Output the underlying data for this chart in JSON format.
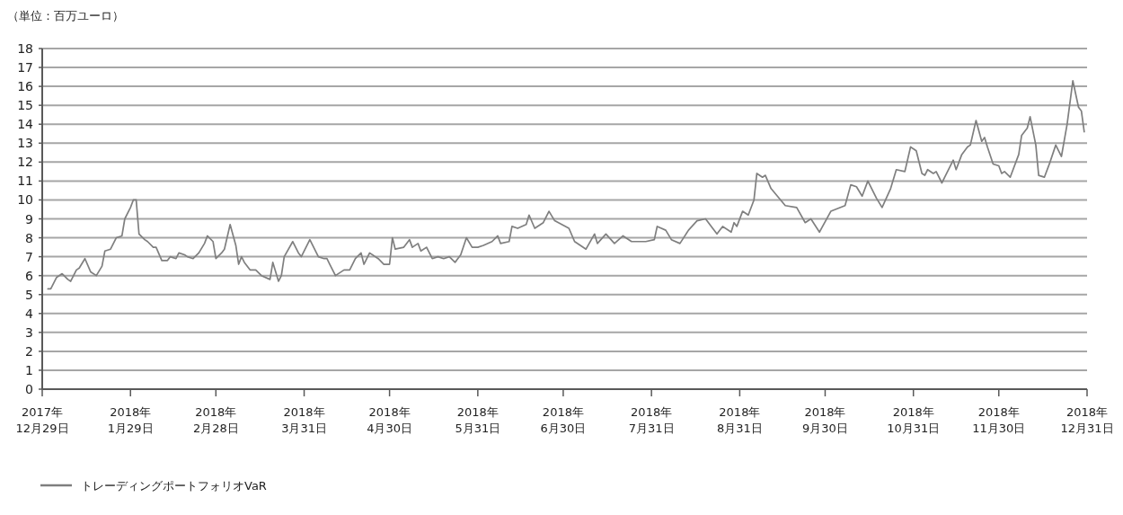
{
  "chart_data": {
    "type": "line",
    "ylabel": "（単位：百万ユーロ）",
    "ylim": [
      0,
      18
    ],
    "yticks": [
      0,
      1,
      2,
      3,
      4,
      5,
      6,
      7,
      8,
      9,
      10,
      11,
      12,
      13,
      14,
      15,
      16,
      17,
      18
    ],
    "xlim": [
      "2017-12-29",
      "2018-12-31"
    ],
    "xticks": [
      {
        "value": "2017-12-29",
        "label": "2017年\n12月29日"
      },
      {
        "value": "2018-01-29",
        "label": "2018年\n1月29日"
      },
      {
        "value": "2018-02-28",
        "label": "2018年\n2月28日"
      },
      {
        "value": "2018-03-31",
        "label": "2018年\n3月31日"
      },
      {
        "value": "2018-04-30",
        "label": "2018年\n4月30日"
      },
      {
        "value": "2018-05-31",
        "label": "2018年\n5月31日"
      },
      {
        "value": "2018-06-30",
        "label": "2018年\n6月30日"
      },
      {
        "value": "2018-07-31",
        "label": "2018年\n7月31日"
      },
      {
        "value": "2018-08-31",
        "label": "2018年\n8月31日"
      },
      {
        "value": "2018-09-30",
        "label": "2018年\n9月30日"
      },
      {
        "value": "2018-10-31",
        "label": "2018年\n10月31日"
      },
      {
        "value": "2018-11-30",
        "label": "2018年\n11月30日"
      },
      {
        "value": "2018-12-31",
        "label": "2018年\n12月31日"
      }
    ],
    "grid": "y",
    "legend": "bottom left",
    "series": [
      {
        "name": "トレーディングポートフォリオVaR",
        "color": "#7f7f7f",
        "x": [
          "2017-12-31",
          "2018-01-01",
          "2018-01-03",
          "2018-01-05",
          "2018-01-07",
          "2018-01-08",
          "2018-01-10",
          "2018-01-11",
          "2018-01-13",
          "2018-01-15",
          "2018-01-17",
          "2018-01-19",
          "2018-01-20",
          "2018-01-22",
          "2018-01-24",
          "2018-01-26",
          "2018-01-27",
          "2018-01-29",
          "2018-01-30",
          "2018-01-31",
          "2018-02-01",
          "2018-02-03",
          "2018-02-04",
          "2018-02-06",
          "2018-02-07",
          "2018-02-09",
          "2018-02-11",
          "2018-02-12",
          "2018-02-14",
          "2018-02-15",
          "2018-02-17",
          "2018-02-18",
          "2018-02-20",
          "2018-02-22",
          "2018-02-24",
          "2018-02-25",
          "2018-02-27",
          "2018-02-28",
          "2018-03-02",
          "2018-03-03",
          "2018-03-05",
          "2018-03-07",
          "2018-03-08",
          "2018-03-09",
          "2018-03-10",
          "2018-03-12",
          "2018-03-14",
          "2018-03-16",
          "2018-03-19",
          "2018-03-20",
          "2018-03-22",
          "2018-03-23",
          "2018-03-24",
          "2018-03-27",
          "2018-03-29",
          "2018-03-30",
          "2018-04-02",
          "2018-04-05",
          "2018-04-07",
          "2018-04-08",
          "2018-04-09",
          "2018-04-11",
          "2018-04-14",
          "2018-04-16",
          "2018-04-18",
          "2018-04-20",
          "2018-04-21",
          "2018-04-23",
          "2018-04-26",
          "2018-04-28",
          "2018-04-30",
          "2018-05-01",
          "2018-05-02",
          "2018-05-05",
          "2018-05-07",
          "2018-05-08",
          "2018-05-10",
          "2018-05-11",
          "2018-05-13",
          "2018-05-15",
          "2018-05-17",
          "2018-05-19",
          "2018-05-21",
          "2018-05-23",
          "2018-05-25",
          "2018-05-27",
          "2018-05-29",
          "2018-05-31",
          "2018-06-02",
          "2018-06-05",
          "2018-06-07",
          "2018-06-08",
          "2018-06-11",
          "2018-06-12",
          "2018-06-14",
          "2018-06-17",
          "2018-06-18",
          "2018-06-20",
          "2018-06-23",
          "2018-06-25",
          "2018-06-27",
          "2018-07-02",
          "2018-07-04",
          "2018-07-08",
          "2018-07-11",
          "2018-07-12",
          "2018-07-15",
          "2018-07-18",
          "2018-07-21",
          "2018-07-24",
          "2018-07-29",
          "2018-08-01",
          "2018-08-02",
          "2018-08-05",
          "2018-08-07",
          "2018-08-10",
          "2018-08-13",
          "2018-08-16",
          "2018-08-19",
          "2018-08-23",
          "2018-08-25",
          "2018-08-28",
          "2018-08-29",
          "2018-08-30",
          "2018-09-01",
          "2018-09-03",
          "2018-09-05",
          "2018-09-06",
          "2018-09-08",
          "2018-09-09",
          "2018-09-11",
          "2018-09-16",
          "2018-09-20",
          "2018-09-23",
          "2018-09-25",
          "2018-09-28",
          "2018-10-02",
          "2018-10-07",
          "2018-10-09",
          "2018-10-11",
          "2018-10-13",
          "2018-10-15",
          "2018-10-18",
          "2018-10-20",
          "2018-10-23",
          "2018-10-25",
          "2018-10-28",
          "2018-10-30",
          "2018-11-01",
          "2018-11-03",
          "2018-11-04",
          "2018-11-05",
          "2018-11-07",
          "2018-11-08",
          "2018-11-10",
          "2018-11-11",
          "2018-11-14",
          "2018-11-15",
          "2018-11-17",
          "2018-11-19",
          "2018-11-20",
          "2018-11-22",
          "2018-11-24",
          "2018-11-25",
          "2018-11-26",
          "2018-11-28",
          "2018-11-30",
          "2018-12-01",
          "2018-12-02",
          "2018-12-04",
          "2018-12-07",
          "2018-12-08",
          "2018-12-10",
          "2018-12-11",
          "2018-12-13",
          "2018-12-14",
          "2018-12-16",
          "2018-12-18",
          "2018-12-20",
          "2018-12-22",
          "2018-12-24",
          "2018-12-26",
          "2018-12-28",
          "2018-12-29",
          "2018-12-30"
        ],
        "values": [
          5.3,
          5.3,
          5.9,
          6.1,
          5.8,
          5.7,
          6.3,
          6.4,
          6.9,
          6.2,
          6.0,
          6.5,
          7.3,
          7.4,
          8.0,
          8.1,
          9.0,
          9.6,
          10.0,
          10.0,
          8.2,
          7.9,
          7.8,
          7.5,
          7.5,
          6.8,
          6.8,
          7.0,
          6.9,
          7.2,
          7.1,
          7.0,
          6.9,
          7.2,
          7.7,
          8.1,
          7.8,
          6.9,
          7.2,
          7.4,
          8.7,
          7.6,
          6.6,
          7.0,
          6.7,
          6.3,
          6.3,
          6.0,
          5.8,
          6.7,
          5.7,
          6.0,
          7.0,
          7.8,
          7.2,
          7.0,
          7.9,
          7.0,
          6.9,
          6.9,
          6.6,
          6.0,
          6.3,
          6.3,
          6.9,
          7.2,
          6.6,
          7.2,
          6.9,
          6.6,
          6.6,
          8.0,
          7.4,
          7.5,
          7.9,
          7.5,
          7.7,
          7.3,
          7.5,
          6.9,
          7.0,
          6.9,
          7.0,
          6.7,
          7.1,
          8.0,
          7.5,
          7.5,
          7.6,
          7.8,
          8.1,
          7.7,
          7.8,
          8.6,
          8.5,
          8.7,
          9.2,
          8.5,
          8.8,
          9.4,
          8.9,
          8.5,
          7.8,
          7.4,
          8.2,
          7.7,
          8.2,
          7.7,
          8.1,
          7.8,
          7.8,
          7.9,
          8.6,
          8.4,
          7.9,
          7.7,
          8.4,
          8.9,
          9.0,
          8.2,
          8.6,
          8.3,
          8.8,
          8.6,
          9.4,
          9.2,
          10.0,
          11.4,
          11.2,
          11.3,
          10.6,
          9.7,
          9.6,
          8.8,
          9.0,
          8.3,
          9.4,
          9.7,
          10.8,
          10.7,
          10.2,
          11.0,
          10.1,
          9.6,
          10.6,
          11.6,
          11.5,
          12.8,
          12.6,
          11.4,
          11.3,
          11.6,
          11.4,
          11.5,
          10.9,
          11.2,
          12.1,
          11.6,
          12.4,
          12.8,
          12.9,
          14.2,
          13.1,
          13.3,
          12.8,
          11.9,
          11.8,
          11.4,
          11.5,
          11.2,
          12.4,
          13.4,
          13.8,
          14.4,
          12.9,
          11.3,
          11.2,
          12.0,
          12.9,
          12.3,
          14.0,
          16.3,
          14.9,
          14.7,
          13.6
        ]
      }
    ]
  }
}
